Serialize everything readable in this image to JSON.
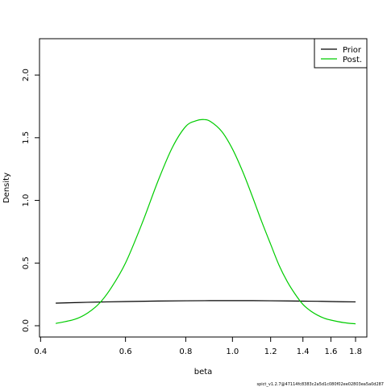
{
  "chart_data": {
    "type": "line",
    "title": "",
    "xlabel": "beta",
    "ylabel": "Density",
    "x_scale": "log",
    "xlim": [
      0.42,
      1.8
    ],
    "ylim": [
      0,
      2.2
    ],
    "xticks": [
      0.4,
      0.6,
      0.8,
      1.0,
      1.2,
      1.4,
      1.6,
      1.8
    ],
    "xtick_labels": [
      "0.4",
      "0.6",
      "0.8",
      "1.0",
      "1.2",
      "1.4",
      "1.6",
      "1.8"
    ],
    "yticks": [
      0.0,
      0.5,
      1.0,
      1.5,
      2.0
    ],
    "ytick_labels": [
      "0.0",
      "0.5",
      "1.0",
      "1.5",
      "2.0"
    ],
    "grid": false,
    "legend": {
      "position": "top-right",
      "entries": [
        "Prior",
        "Post."
      ]
    },
    "series": [
      {
        "name": "Prior",
        "color": "#000000",
        "x": [
          0.43,
          0.5,
          0.6,
          0.7,
          0.8,
          0.9,
          1.0,
          1.1,
          1.2,
          1.3,
          1.4,
          1.5,
          1.6,
          1.8
        ],
        "y": [
          0.18,
          0.187,
          0.193,
          0.197,
          0.199,
          0.2,
          0.2,
          0.2,
          0.199,
          0.198,
          0.196,
          0.195,
          0.193,
          0.19
        ]
      },
      {
        "name": "Post.",
        "color": "#00cc00",
        "x": [
          0.43,
          0.47,
          0.5,
          0.53,
          0.56,
          0.6,
          0.65,
          0.7,
          0.75,
          0.8,
          0.84,
          0.87,
          0.9,
          0.95,
          1.0,
          1.05,
          1.1,
          1.15,
          1.2,
          1.25,
          1.3,
          1.35,
          1.4,
          1.45,
          1.5,
          1.55,
          1.6,
          1.7,
          1.8
        ],
        "y": [
          0.018,
          0.05,
          0.1,
          0.18,
          0.3,
          0.5,
          0.82,
          1.15,
          1.42,
          1.59,
          1.635,
          1.645,
          1.63,
          1.55,
          1.41,
          1.23,
          1.03,
          0.83,
          0.65,
          0.48,
          0.35,
          0.25,
          0.17,
          0.12,
          0.085,
          0.06,
          0.045,
          0.025,
          0.015
        ]
      }
    ]
  },
  "footer": "spict_v1.2.7@47114fc8383c2a5d1c080f02ee02803ea5a0d287"
}
